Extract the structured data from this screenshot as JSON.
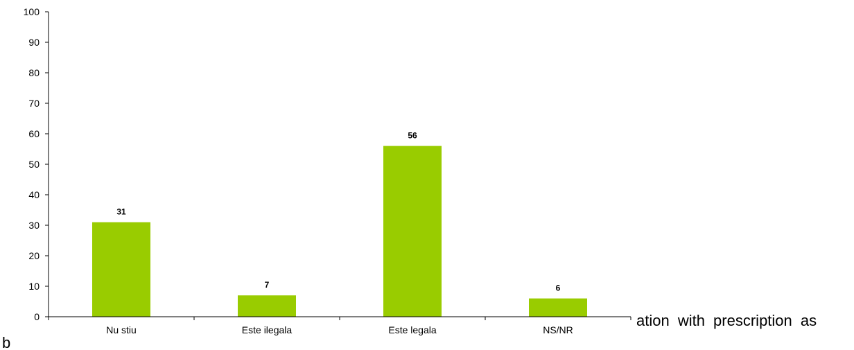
{
  "chart_data": {
    "type": "bar",
    "categories": [
      "Nu stiu",
      "Este ilegala",
      "Este legala",
      "NS/NR"
    ],
    "values": [
      31,
      7,
      56,
      6
    ],
    "data_labels": [
      "31",
      "7",
      "56",
      "6"
    ],
    "ylim": [
      0,
      100
    ],
    "yticks": [
      0,
      10,
      20,
      30,
      40,
      50,
      60,
      70,
      80,
      90,
      100
    ],
    "title": "",
    "xlabel": "",
    "ylabel": "",
    "grid": false,
    "legend": "none",
    "bar_color": "#99cc00"
  },
  "background_text": {
    "line1": "ation with prescription as",
    "line2": "b"
  }
}
